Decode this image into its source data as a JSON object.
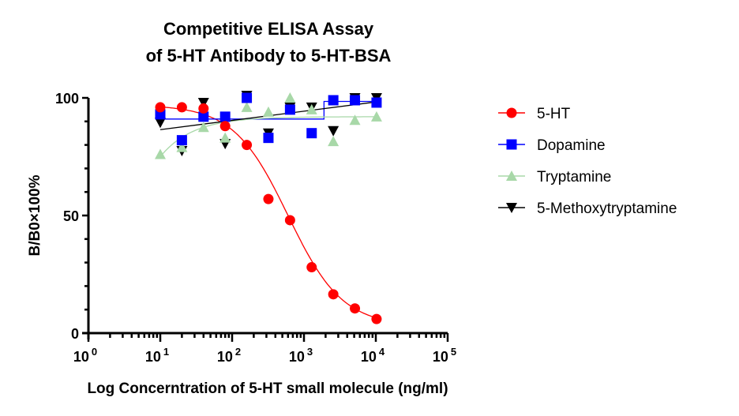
{
  "chart_data": {
    "type": "scatter",
    "title_line1": "Competitive ELISA Assay",
    "title_line2": "of  5-HT Antibody to 5-HT-BSA",
    "xlabel": "Log Concerntration of 5-HT small molecule (ng/ml)",
    "ylabel": "B/B0×100%",
    "xscale": "log",
    "xlim": [
      1,
      100000
    ],
    "ylim": [
      0,
      100
    ],
    "x_ticks": [
      {
        "base": "10",
        "exp": "0",
        "value": 1
      },
      {
        "base": "10",
        "exp": "1",
        "value": 10
      },
      {
        "base": "10",
        "exp": "2",
        "value": 100
      },
      {
        "base": "10",
        "exp": "3",
        "value": 1000
      },
      {
        "base": "10",
        "exp": "4",
        "value": 10000
      },
      {
        "base": "10",
        "exp": "5",
        "value": 100000
      }
    ],
    "y_ticks": [
      {
        "label": "0",
        "value": 0
      },
      {
        "label": "50",
        "value": 50
      },
      {
        "label": "100",
        "value": 100
      }
    ],
    "legend_position": "right",
    "x": [
      10,
      20,
      40,
      80,
      160,
      320,
      640,
      1280,
      2560,
      5120,
      10240
    ],
    "series": [
      {
        "name": "5-HT",
        "color": "#FF0000",
        "marker": "circle",
        "fit": "sigmoid",
        "values": [
          96,
          96,
          95.5,
          88,
          80,
          57,
          48,
          28,
          16.5,
          10.5,
          6
        ]
      },
      {
        "name": "Dopamine",
        "color": "#0000FF",
        "marker": "square",
        "fit": "step",
        "values": [
          93,
          82,
          92,
          92,
          100,
          83,
          95,
          85,
          99,
          99,
          98
        ]
      },
      {
        "name": "Tryptamine",
        "color": "#A8D8A8",
        "marker": "triangle-up",
        "fit": "saturating",
        "values": [
          76,
          79,
          87.5,
          83,
          96,
          94,
          100,
          95,
          81.5,
          90.5,
          92
        ]
      },
      {
        "name": "5-Methoxytryptamine",
        "color": "#000000",
        "marker": "triangle-down",
        "fit": "linear",
        "values": [
          89.5,
          77.5,
          98,
          80.5,
          101,
          85,
          96,
          96,
          86,
          100,
          100
        ]
      }
    ]
  }
}
